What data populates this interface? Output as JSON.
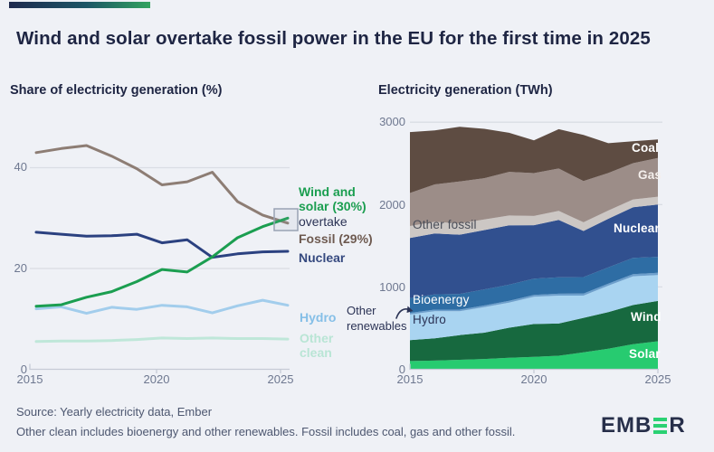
{
  "header": {
    "title": "Wind and solar overtake fossil power in the EU for the first time in 2025"
  },
  "annotations": {
    "wind_solar": "Wind and solar (30%)",
    "overtake": "overtake",
    "fossil": "Fossil (29%)",
    "nuclear": "Nuclear",
    "hydro": "Hydro",
    "other_clean": "Other clean",
    "other_renewables": "Other renewables"
  },
  "colors": {
    "background": "#eff1f6",
    "title_text": "#1e2543",
    "axis_text": "#6e7890",
    "gridline": "#dadde4",
    "accent_gradient_start": "#1f2a4e",
    "accent_gradient_end": "#33a35f",
    "logo_green": "#2ad173"
  },
  "footer": {
    "source": "Source: Yearly electricity data, Ember",
    "note": "Other clean includes bioenergy and other renewables. Fossil includes coal, gas and other fossil.",
    "logo_left": "EMB",
    "logo_right": "R"
  },
  "chart_data": [
    {
      "type": "line",
      "title": "Share of electricity generation (%)",
      "x": [
        2015,
        2016,
        2017,
        2018,
        2019,
        2020,
        2021,
        2022,
        2023,
        2024,
        2025
      ],
      "xticks": [
        "2015",
        "2020",
        "2025"
      ],
      "yticks": [
        "0",
        "20",
        "40"
      ],
      "ylim": [
        0,
        50
      ],
      "grid": "horizontal",
      "legend_position": "right-of-lines",
      "series": [
        {
          "name": "Fossil",
          "color": "#8d7d74",
          "values": [
            43,
            43.8,
            44.4,
            42.3,
            39.8,
            36.6,
            37.2,
            39.1,
            33.3,
            30.6,
            29
          ]
        },
        {
          "name": "Nuclear",
          "color": "#2b4180",
          "values": [
            27.2,
            26.8,
            26.4,
            26.5,
            26.8,
            25.1,
            25.7,
            22.2,
            22.9,
            23.3,
            23.4
          ]
        },
        {
          "name": "Hydro",
          "color": "#a2cdec",
          "values": [
            12.0,
            12.4,
            11.1,
            12.3,
            11.9,
            12.7,
            12.4,
            11.2,
            12.6,
            13.7,
            12.7
          ]
        },
        {
          "name": "Other clean",
          "color": "#bfe7d9",
          "values": [
            5.5,
            5.6,
            5.6,
            5.7,
            5.9,
            6.2,
            6.1,
            6.2,
            6.1,
            6.1,
            6.0
          ]
        },
        {
          "name": "Wind and solar",
          "color": "#1b9e50",
          "values": [
            12.5,
            12.8,
            14.3,
            15.4,
            17.4,
            19.8,
            19.3,
            22.3,
            26.1,
            28.3,
            30
          ]
        }
      ],
      "annotation": "highlight box where Wind and solar overtakes Fossil in 2025"
    },
    {
      "type": "area",
      "title": "Electricity generation (TWh)",
      "x": [
        2015,
        2016,
        2017,
        2018,
        2019,
        2020,
        2021,
        2022,
        2023,
        2024,
        2025
      ],
      "xticks": [
        "2015",
        "2020",
        "2025"
      ],
      "yticks": [
        "0",
        "1000",
        "2000",
        "3000"
      ],
      "ylim": [
        0,
        3000
      ],
      "stack_order": "bottom-to-top",
      "series": [
        {
          "name": "Solar",
          "color": "#27cb70",
          "values": [
            100,
            105,
            115,
            125,
            140,
            150,
            165,
            205,
            250,
            305,
            340
          ]
        },
        {
          "name": "Wind",
          "color": "#17693f",
          "values": [
            255,
            270,
            300,
            320,
            365,
            400,
            390,
            420,
            445,
            475,
            490
          ]
        },
        {
          "name": "Hydro",
          "color": "#a9d4f1",
          "values": [
            310,
            330,
            290,
            310,
            305,
            330,
            340,
            270,
            320,
            350,
            315
          ]
        },
        {
          "name": "Other renewables",
          "color": "#6d9fcc",
          "values": [
            20,
            20,
            20,
            20,
            22,
            22,
            23,
            25,
            25,
            26,
            26
          ]
        },
        {
          "name": "Bioenergy",
          "color": "#2e6da4",
          "values": [
            180,
            185,
            190,
            195,
            195,
            198,
            200,
            200,
            198,
            196,
            195
          ]
        },
        {
          "name": "Nuclear",
          "color": "#31508f",
          "values": [
            730,
            740,
            720,
            720,
            720,
            650,
            695,
            560,
            590,
            615,
            635
          ]
        },
        {
          "name": "Other fossil",
          "color": "#ccc7c4",
          "values": [
            145,
            140,
            135,
            130,
            120,
            112,
            110,
            105,
            100,
            96,
            95
          ]
        },
        {
          "name": "Gas",
          "color": "#9c8d88",
          "values": [
            400,
            455,
            510,
            500,
            530,
            520,
            515,
            500,
            455,
            440,
            470
          ]
        },
        {
          "name": "Coal",
          "color": "#5e4c42",
          "values": [
            740,
            655,
            665,
            600,
            475,
            398,
            477,
            560,
            362,
            267,
            224
          ]
        }
      ]
    }
  ]
}
